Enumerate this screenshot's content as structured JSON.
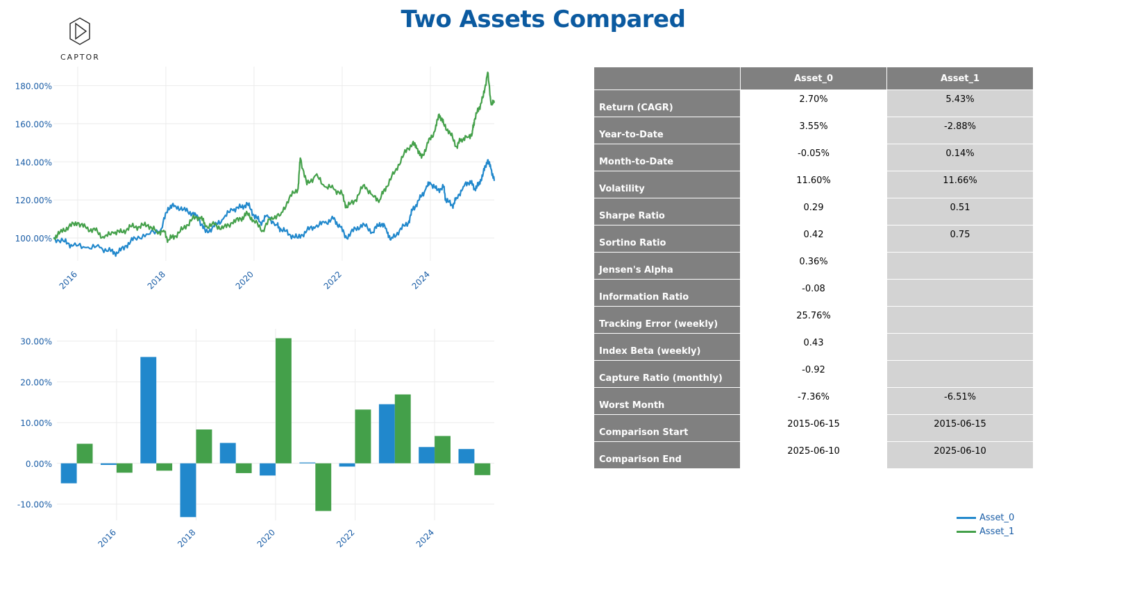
{
  "title": "Two Assets Compared",
  "logo": {
    "text": "CAPTOR"
  },
  "colors": {
    "asset_0": "#2188cc",
    "asset_1": "#44a04a",
    "title": "#0b5aa0",
    "axis_text": "#1a5da6",
    "header_bg": "#808080",
    "alt_col": "#d3d3d3"
  },
  "legend": [
    {
      "name": "Asset_0",
      "color": "#2188cc"
    },
    {
      "name": "Asset_1",
      "color": "#44a04a"
    }
  ],
  "chart_data": [
    {
      "type": "line",
      "ylim": [
        88,
        190
      ],
      "xlim": [
        2015.45,
        2025.45
      ],
      "y_ticks": [
        100,
        120,
        140,
        160,
        180
      ],
      "y_tick_labels": [
        "100.00%",
        "120.00%",
        "140.00%",
        "160.00%",
        "180.00%"
      ],
      "x_ticks": [
        2016,
        2018,
        2020,
        2022,
        2024
      ],
      "x_tick_labels": [
        "2016",
        "2018",
        "2020",
        "2022",
        "2024"
      ],
      "series": [
        {
          "name": "Asset_0",
          "points": [
            [
              2015.45,
              100
            ],
            [
              2015.7,
              98
            ],
            [
              2015.9,
              96
            ],
            [
              2016.2,
              95
            ],
            [
              2016.5,
              95
            ],
            [
              2016.75,
              93
            ],
            [
              2016.9,
              92
            ],
            [
              2017.1,
              96
            ],
            [
              2017.3,
              100
            ],
            [
              2017.6,
              102
            ],
            [
              2017.9,
              105
            ],
            [
              2018.05,
              116
            ],
            [
              2018.2,
              117
            ],
            [
              2018.4,
              115
            ],
            [
              2018.6,
              113
            ],
            [
              2018.75,
              110
            ],
            [
              2018.9,
              103
            ],
            [
              2019.1,
              106
            ],
            [
              2019.3,
              110
            ],
            [
              2019.5,
              115
            ],
            [
              2019.7,
              116
            ],
            [
              2019.85,
              118
            ],
            [
              2020.0,
              112
            ],
            [
              2020.15,
              108
            ],
            [
              2020.3,
              112
            ],
            [
              2020.5,
              107
            ],
            [
              2020.6,
              105
            ],
            [
              2020.8,
              102
            ],
            [
              2021.0,
              100
            ],
            [
              2021.2,
              104
            ],
            [
              2021.4,
              106
            ],
            [
              2021.6,
              108
            ],
            [
              2021.8,
              110
            ],
            [
              2021.95,
              106
            ],
            [
              2022.1,
              100
            ],
            [
              2022.3,
              105
            ],
            [
              2022.5,
              107
            ],
            [
              2022.7,
              103
            ],
            [
              2022.85,
              108
            ],
            [
              2023.0,
              105
            ],
            [
              2023.1,
              99
            ],
            [
              2023.3,
              104
            ],
            [
              2023.5,
              108
            ],
            [
              2023.6,
              115
            ],
            [
              2023.75,
              120
            ],
            [
              2023.9,
              126
            ],
            [
              2024.0,
              129
            ],
            [
              2024.15,
              125
            ],
            [
              2024.3,
              127
            ],
            [
              2024.35,
              120
            ],
            [
              2024.5,
              117
            ],
            [
              2024.6,
              121
            ],
            [
              2024.75,
              127
            ],
            [
              2024.9,
              130
            ],
            [
              2025.0,
              126
            ],
            [
              2025.1,
              128
            ],
            [
              2025.2,
              134
            ],
            [
              2025.3,
              141
            ],
            [
              2025.38,
              136
            ],
            [
              2025.45,
              130
            ]
          ]
        },
        {
          "name": "Asset_1",
          "points": [
            [
              2015.45,
              100
            ],
            [
              2015.6,
              103
            ],
            [
              2015.8,
              106
            ],
            [
              2016.0,
              108
            ],
            [
              2016.2,
              105
            ],
            [
              2016.4,
              104
            ],
            [
              2016.6,
              100
            ],
            [
              2016.8,
              103
            ],
            [
              2017.0,
              103
            ],
            [
              2017.2,
              106
            ],
            [
              2017.4,
              106
            ],
            [
              2017.6,
              107
            ],
            [
              2017.8,
              103
            ],
            [
              2017.95,
              104
            ],
            [
              2018.05,
              99
            ],
            [
              2018.2,
              101
            ],
            [
              2018.4,
              105
            ],
            [
              2018.6,
              110
            ],
            [
              2018.8,
              111
            ],
            [
              2018.9,
              106
            ],
            [
              2019.1,
              107
            ],
            [
              2019.3,
              105
            ],
            [
              2019.5,
              108
            ],
            [
              2019.7,
              110
            ],
            [
              2019.85,
              113
            ],
            [
              2020.0,
              109
            ],
            [
              2020.2,
              104
            ],
            [
              2020.4,
              111
            ],
            [
              2020.6,
              112
            ],
            [
              2020.8,
              121
            ],
            [
              2021.0,
              126
            ],
            [
              2021.05,
              142
            ],
            [
              2021.2,
              128
            ],
            [
              2021.4,
              133
            ],
            [
              2021.6,
              127
            ],
            [
              2021.8,
              126
            ],
            [
              2022.0,
              123
            ],
            [
              2022.1,
              116
            ],
            [
              2022.3,
              120
            ],
            [
              2022.5,
              128
            ],
            [
              2022.7,
              122
            ],
            [
              2022.85,
              120
            ],
            [
              2023.0,
              127
            ],
            [
              2023.2,
              135
            ],
            [
              2023.4,
              144
            ],
            [
              2023.6,
              150
            ],
            [
              2023.7,
              147
            ],
            [
              2023.8,
              142
            ],
            [
              2023.95,
              150
            ],
            [
              2024.1,
              156
            ],
            [
              2024.2,
              165
            ],
            [
              2024.3,
              160
            ],
            [
              2024.45,
              155
            ],
            [
              2024.6,
              148
            ],
            [
              2024.7,
              152
            ],
            [
              2024.85,
              153
            ],
            [
              2024.95,
              155
            ],
            [
              2025.0,
              162
            ],
            [
              2025.1,
              168
            ],
            [
              2025.2,
              174
            ],
            [
              2025.3,
              187
            ],
            [
              2025.38,
              170
            ],
            [
              2025.45,
              171
            ]
          ]
        }
      ]
    },
    {
      "type": "bar",
      "ylim": [
        -14,
        33
      ],
      "y_ticks": [
        -10,
        0,
        10,
        20,
        30
      ],
      "y_tick_labels": [
        "-10.00%",
        "0.00%",
        "10.00%",
        "20.00%",
        "30.00%"
      ],
      "categories": [
        2015,
        2016,
        2017,
        2018,
        2019,
        2020,
        2021,
        2022,
        2023,
        2024,
        2025
      ],
      "x_ticks": [
        2016,
        2018,
        2020,
        2022,
        2024
      ],
      "x_tick_labels": [
        "2016",
        "2018",
        "2020",
        "2022",
        "2024"
      ],
      "series": [
        {
          "name": "Asset_0",
          "values": [
            -4.9,
            -0.4,
            26.1,
            -13.2,
            5.0,
            -3.0,
            0.2,
            -0.8,
            14.5,
            4.0,
            3.5
          ]
        },
        {
          "name": "Asset_1",
          "values": [
            4.8,
            -2.3,
            -1.8,
            8.3,
            -2.4,
            30.7,
            -11.7,
            13.2,
            16.9,
            6.7,
            -2.9
          ]
        }
      ]
    }
  ],
  "table": {
    "headers": [
      "",
      "Asset_0",
      "Asset_1"
    ],
    "rows": [
      {
        "label": "Return (CAGR)",
        "a0": "2.70%",
        "a1": "5.43%"
      },
      {
        "label": "Year-to-Date",
        "a0": "3.55%",
        "a1": "-2.88%"
      },
      {
        "label": "Month-to-Date",
        "a0": "-0.05%",
        "a1": "0.14%"
      },
      {
        "label": "Volatility",
        "a0": "11.60%",
        "a1": "11.66%"
      },
      {
        "label": "Sharpe Ratio",
        "a0": "0.29",
        "a1": "0.51"
      },
      {
        "label": "Sortino Ratio",
        "a0": "0.42",
        "a1": "0.75"
      },
      {
        "label": "Jensen's Alpha",
        "a0": "0.36%",
        "a1": ""
      },
      {
        "label": "Information Ratio",
        "a0": "-0.08",
        "a1": ""
      },
      {
        "label": "Tracking Error (weekly)",
        "a0": "25.76%",
        "a1": ""
      },
      {
        "label": "Index Beta (weekly)",
        "a0": "0.43",
        "a1": ""
      },
      {
        "label": "Capture Ratio (monthly)",
        "a0": "-0.92",
        "a1": ""
      },
      {
        "label": "Worst Month",
        "a0": "-7.36%",
        "a1": "-6.51%"
      },
      {
        "label": "Comparison Start",
        "a0": "2015-06-15",
        "a1": "2015-06-15"
      },
      {
        "label": "Comparison End",
        "a0": "2025-06-10",
        "a1": "2025-06-10"
      }
    ]
  }
}
